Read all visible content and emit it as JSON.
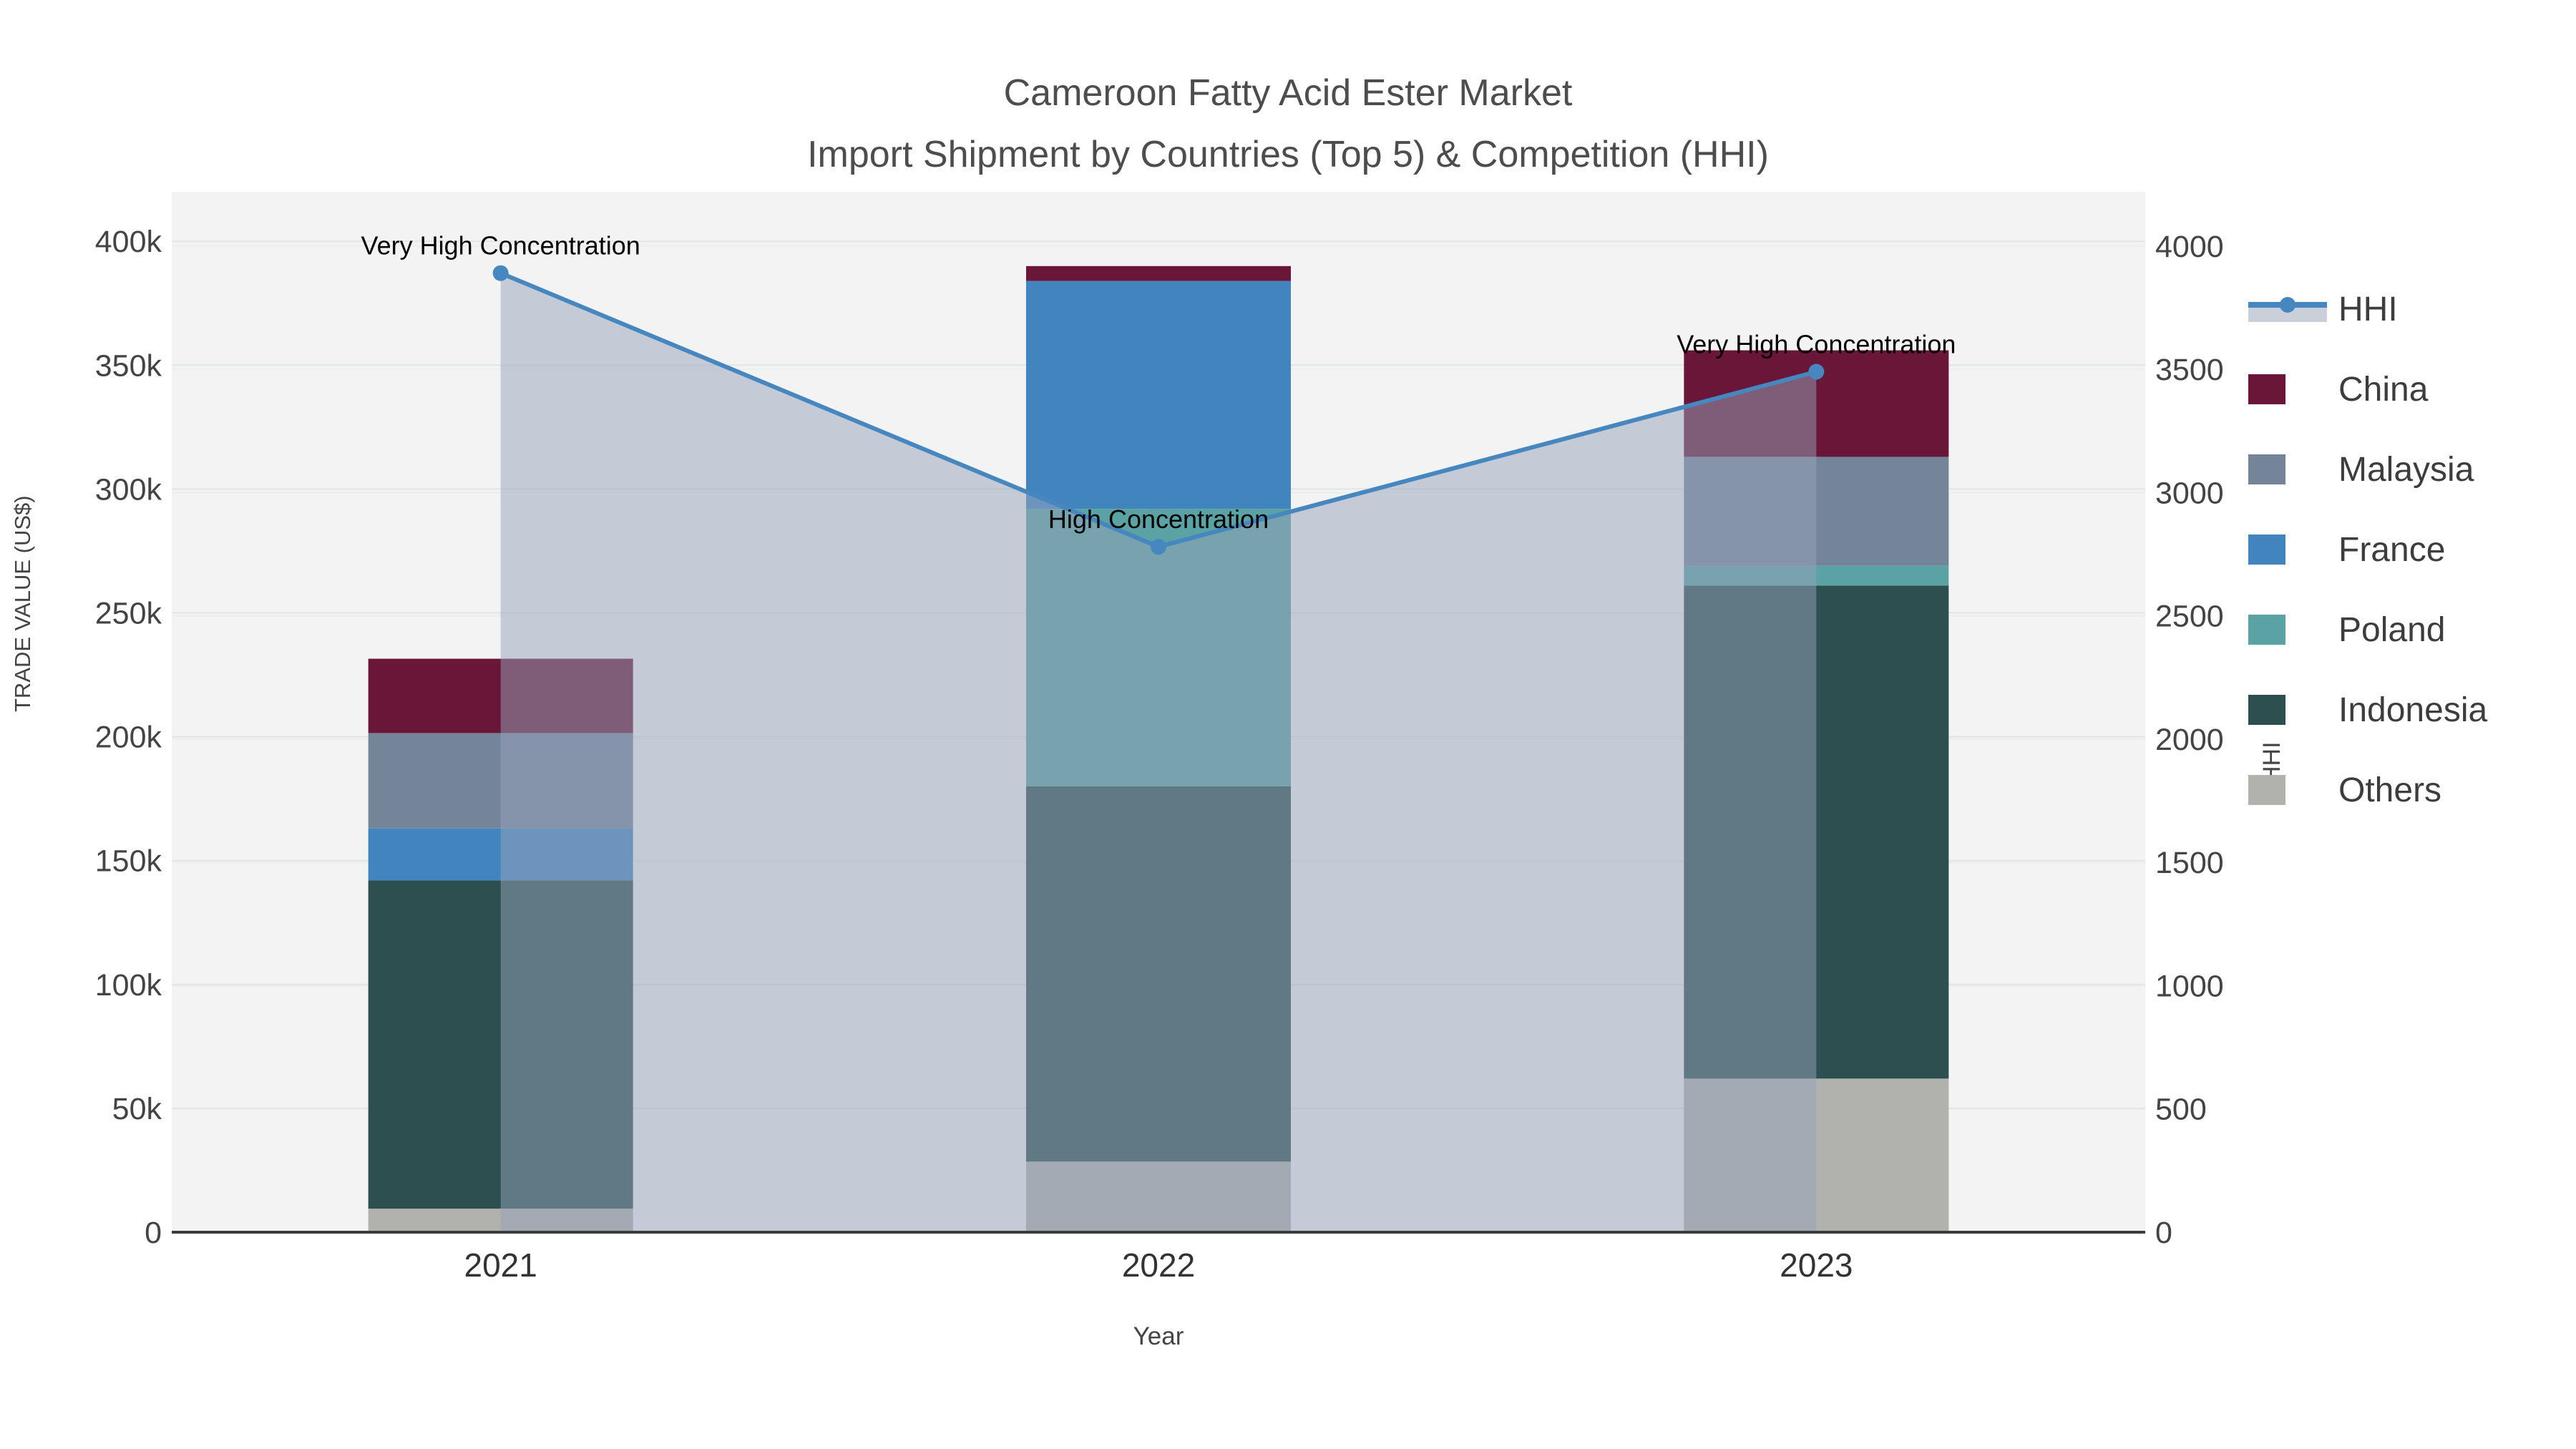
{
  "title": {
    "line1": "Cameroon Fatty Acid Ester Market",
    "line2": "Import Shipment by Countries (Top 5) & Competition (HHI)"
  },
  "axes": {
    "y_left": {
      "title": "TRADE VALUE (US$)",
      "tick_labels": [
        "0",
        "50k",
        "100k",
        "150k",
        "200k",
        "250k",
        "300k",
        "350k",
        "400k"
      ]
    },
    "y_right": {
      "title": "HHI",
      "tick_labels": [
        "0",
        "500",
        "1000",
        "1500",
        "2000",
        "2500",
        "3000",
        "3500",
        "4000"
      ]
    },
    "x": {
      "title": "Year",
      "tick_labels": [
        "2021",
        "2022",
        "2023"
      ]
    }
  },
  "legend": {
    "items": [
      {
        "label": "HHI",
        "type": "line",
        "color": "#4587BE"
      },
      {
        "label": "China",
        "type": "swatch",
        "color": "#691638"
      },
      {
        "label": "Malaysia",
        "type": "swatch",
        "color": "#74859A"
      },
      {
        "label": "France",
        "type": "swatch",
        "color": "#4284BE"
      },
      {
        "label": "Poland",
        "type": "swatch",
        "color": "#5AA2A3"
      },
      {
        "label": "Indonesia",
        "type": "swatch",
        "color": "#2D4F4F"
      },
      {
        "label": "Others",
        "type": "swatch",
        "color": "#B1B1AE"
      }
    ]
  },
  "chart_data": {
    "type": "combo-stacked-bar-line",
    "title": "Cameroon Fatty Acid Ester Market — Import Shipment by Countries (Top 5) & Competition (HHI)",
    "categories": [
      "2021",
      "2022",
      "2023"
    ],
    "xlabel": "Year",
    "ylabel_left": "TRADE VALUE (US$)",
    "ylabel_right": "HHI",
    "y_left_range": [
      0,
      420000
    ],
    "y_right_range": [
      0,
      4220
    ],
    "grid": true,
    "legend_position": "right",
    "bar_series_stack_bottom_to_top": [
      {
        "name": "Others",
        "color": "#B1B1AE",
        "values": [
          9500,
          28500,
          62000
        ]
      },
      {
        "name": "Indonesia",
        "color": "#2D4F4F",
        "values": [
          132500,
          151500,
          199000
        ]
      },
      {
        "name": "Poland",
        "color": "#5AA2A3",
        "values": [
          0,
          112000,
          8000
        ]
      },
      {
        "name": "France",
        "color": "#4284BE",
        "values": [
          21000,
          92000,
          0
        ]
      },
      {
        "name": "Malaysia",
        "color": "#74859A",
        "values": [
          38500,
          0,
          44000
        ]
      },
      {
        "name": "China",
        "color": "#691638",
        "values": [
          30000,
          6000,
          43000
        ]
      }
    ],
    "bar_totals": [
      231500,
      390000,
      356000
    ],
    "line_series": {
      "name": "HHI",
      "color": "#4587BE",
      "area_fill": "rgba(150,163,185,0.5)",
      "values": [
        3890,
        2780,
        3490
      ]
    },
    "annotations": [
      {
        "text": "Very High Concentration",
        "x": "2021"
      },
      {
        "text": "High Concentration",
        "x": "2022"
      },
      {
        "text": "Very High Concentration",
        "x": "2023"
      }
    ]
  }
}
